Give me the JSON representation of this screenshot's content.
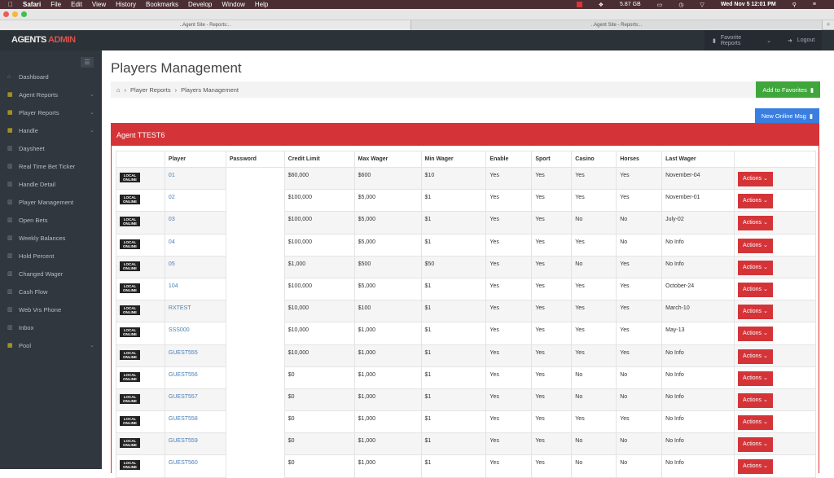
{
  "menubar": {
    "apple": "",
    "app": "Safari",
    "items": [
      "File",
      "Edit",
      "View",
      "History",
      "Bookmarks",
      "Develop",
      "Window",
      "Help"
    ],
    "memory": "5.87 GB",
    "clock": "Wed Nov 5  12:01 PM"
  },
  "browser": {
    "tabs": [
      "..Agent Site - Reports:..",
      "..Agent Site - Reports:.."
    ]
  },
  "topnav": {
    "logo_main": "AGENTS",
    "logo_accent": "ADMIN",
    "favorites": "Favorite Reports",
    "logout": "Logout"
  },
  "sidebar": {
    "items": [
      {
        "label": "Dashboard",
        "icon": "home",
        "chev": false
      },
      {
        "label": "Agent Reports",
        "icon": "grid",
        "chev": true
      },
      {
        "label": "Player Reports",
        "icon": "grid",
        "chev": true
      },
      {
        "label": "Handle",
        "icon": "grid",
        "chev": true
      },
      {
        "label": "Daysheet",
        "icon": "chart",
        "chev": false
      },
      {
        "label": "Real Time Bet Ticker",
        "icon": "chart",
        "chev": false
      },
      {
        "label": "Handle Detail",
        "icon": "chart",
        "chev": false
      },
      {
        "label": "Player Management",
        "icon": "chart",
        "chev": false
      },
      {
        "label": "Open Bets",
        "icon": "chart",
        "chev": false
      },
      {
        "label": "Weekly Balances",
        "icon": "chart",
        "chev": false
      },
      {
        "label": "Hold Percent",
        "icon": "chart",
        "chev": false
      },
      {
        "label": "Changed Wager",
        "icon": "chart",
        "chev": false
      },
      {
        "label": "Cash Flow",
        "icon": "chart",
        "chev": false
      },
      {
        "label": "Web Vrs Phone",
        "icon": "chart",
        "chev": false
      },
      {
        "label": "Inbox",
        "icon": "chart",
        "chev": false
      },
      {
        "label": "Pool",
        "icon": "grid",
        "chev": true
      }
    ]
  },
  "page": {
    "title": "Players Management",
    "breadcrumb": [
      "Player Reports",
      "Players Management"
    ],
    "add_favorites": "Add to Favorites",
    "new_msg": "New Online Msg",
    "panel_title": "Agent TTEST6"
  },
  "table": {
    "headers": [
      "",
      "Player",
      "Password",
      "Credit Limit",
      "Max Wager",
      "Min Wager",
      "Enable",
      "Sport",
      "Casino",
      "Horses",
      "Last Wager",
      ""
    ],
    "badge": [
      "LOCAL",
      "ONLINE"
    ],
    "action_label": "Actions",
    "rows": [
      [
        "01",
        "$60,000",
        "$600",
        "$10",
        "Yes",
        "Yes",
        "Yes",
        "Yes",
        "November-04"
      ],
      [
        "02",
        "$100,000",
        "$5,000",
        "$1",
        "Yes",
        "Yes",
        "Yes",
        "Yes",
        "November-01"
      ],
      [
        "03",
        "$100,000",
        "$5,000",
        "$1",
        "Yes",
        "Yes",
        "No",
        "No",
        "July-02"
      ],
      [
        "04",
        "$100,000",
        "$5,000",
        "$1",
        "Yes",
        "Yes",
        "Yes",
        "No",
        "No Info"
      ],
      [
        "05",
        "$1,000",
        "$500",
        "$50",
        "Yes",
        "Yes",
        "No",
        "Yes",
        "No Info"
      ],
      [
        "104",
        "$100,000",
        "$5,000",
        "$1",
        "Yes",
        "Yes",
        "Yes",
        "Yes",
        "October-24"
      ],
      [
        "RXTEST",
        "$10,000",
        "$100",
        "$1",
        "Yes",
        "Yes",
        "Yes",
        "Yes",
        "March-10"
      ],
      [
        "SSS000",
        "$10,000",
        "$1,000",
        "$1",
        "Yes",
        "Yes",
        "Yes",
        "Yes",
        "May-13"
      ],
      [
        "GUEST555",
        "$10,000",
        "$1,000",
        "$1",
        "Yes",
        "Yes",
        "Yes",
        "Yes",
        "No Info"
      ],
      [
        "GUEST556",
        "$0",
        "$1,000",
        "$1",
        "Yes",
        "Yes",
        "No",
        "No",
        "No Info"
      ],
      [
        "GUEST557",
        "$0",
        "$1,000",
        "$1",
        "Yes",
        "Yes",
        "No",
        "No",
        "No Info"
      ],
      [
        "GUEST558",
        "$0",
        "$1,000",
        "$1",
        "Yes",
        "Yes",
        "Yes",
        "Yes",
        "No Info"
      ],
      [
        "GUEST559",
        "$0",
        "$1,000",
        "$1",
        "Yes",
        "Yes",
        "No",
        "No",
        "No Info"
      ],
      [
        "GUEST560",
        "$0",
        "$1,000",
        "$1",
        "Yes",
        "Yes",
        "No",
        "No",
        "No Info"
      ]
    ]
  },
  "colors": {
    "accent_red": "#d43438",
    "green": "#3ea63a",
    "blue": "#3a7ee0",
    "sidebar": "#30373e"
  }
}
